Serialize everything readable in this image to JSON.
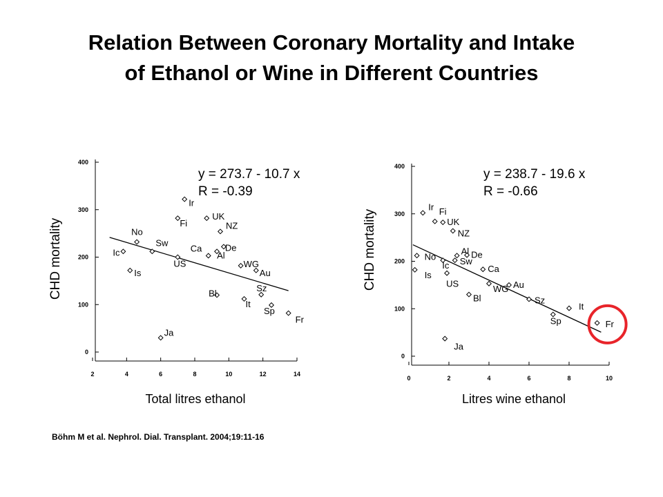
{
  "slide": {
    "title_line1": "Relation Between Coronary Mortality and Intake",
    "title_line2": "of Ethanol or Wine in Different Countries",
    "citation": "Böhm M et al. Nephrol. Dial. Transplant. 2004;19:11-16"
  },
  "chart_data": [
    {
      "type": "scatter",
      "title": "",
      "xlabel": "Total litres ethanol",
      "ylabel": "CHD mortality",
      "xlim": [
        2,
        14
      ],
      "ylim": [
        0,
        400
      ],
      "xticks": [
        "2",
        "4",
        "6",
        "8",
        "10",
        "12",
        "14"
      ],
      "yticks": [
        "0",
        "100",
        "200",
        "300",
        "400"
      ],
      "equation": "y = 273.7 - 10.7 x",
      "r_label": "R = -0.39",
      "regression": {
        "intercept": 273.7,
        "slope": -10.7,
        "x_range": [
          3,
          13.5
        ]
      },
      "points": [
        {
          "label": "Ir",
          "x": 7.4,
          "y": 322
        },
        {
          "label": "Fi",
          "x": 7.0,
          "y": 282
        },
        {
          "label": "UK",
          "x": 8.7,
          "y": 282
        },
        {
          "label": "NZ",
          "x": 9.5,
          "y": 254
        },
        {
          "label": "No",
          "x": 4.6,
          "y": 232
        },
        {
          "label": "De",
          "x": 9.7,
          "y": 222
        },
        {
          "label": "Sw",
          "x": 5.5,
          "y": 212
        },
        {
          "label": "Ic",
          "x": 3.8,
          "y": 212
        },
        {
          "label": "Ca",
          "x": 8.8,
          "y": 203
        },
        {
          "label": "Al",
          "x": 9.3,
          "y": 212
        },
        {
          "label": "US",
          "x": 7.0,
          "y": 200
        },
        {
          "label": "WG",
          "x": 10.7,
          "y": 182
        },
        {
          "label": "Au",
          "x": 11.6,
          "y": 172
        },
        {
          "label": "Is",
          "x": 4.2,
          "y": 172
        },
        {
          "label": "Bl",
          "x": 9.3,
          "y": 120
        },
        {
          "label": "Sz",
          "x": 11.9,
          "y": 121
        },
        {
          "label": "It",
          "x": 10.9,
          "y": 112
        },
        {
          "label": "Sp",
          "x": 12.5,
          "y": 99
        },
        {
          "label": "Fr",
          "x": 13.5,
          "y": 82
        },
        {
          "label": "Ja",
          "x": 6.0,
          "y": 30
        }
      ]
    },
    {
      "type": "scatter",
      "title": "",
      "xlabel": "Litres wine ethanol",
      "ylabel": "CHD mortality",
      "xlim": [
        0,
        10
      ],
      "ylim": [
        0,
        400
      ],
      "xticks": [
        "0",
        "2",
        "4",
        "6",
        "8",
        "10"
      ],
      "yticks": [
        "0",
        "100",
        "200",
        "300",
        "400"
      ],
      "equation": "y = 238.7 - 19.6 x",
      "r_label": "R = -0.66",
      "regression": {
        "intercept": 238.7,
        "slope": -19.6,
        "x_range": [
          0.2,
          9.6
        ]
      },
      "highlight": "Fr",
      "highlight_color": "#e8242a",
      "points": [
        {
          "label": "Ir",
          "x": 0.7,
          "y": 302
        },
        {
          "label": "Fi",
          "x": 1.3,
          "y": 284
        },
        {
          "label": "UK",
          "x": 1.7,
          "y": 282
        },
        {
          "label": "NZ",
          "x": 2.2,
          "y": 264
        },
        {
          "label": "No",
          "x": 0.4,
          "y": 212
        },
        {
          "label": "Ic",
          "x": 1.7,
          "y": 202
        },
        {
          "label": "Al",
          "x": 2.4,
          "y": 212
        },
        {
          "label": "De",
          "x": 2.9,
          "y": 213
        },
        {
          "label": "Sw",
          "x": 2.3,
          "y": 202
        },
        {
          "label": "Is",
          "x": 0.3,
          "y": 182
        },
        {
          "label": "Ca",
          "x": 3.7,
          "y": 183
        },
        {
          "label": "US",
          "x": 1.9,
          "y": 175
        },
        {
          "label": "Au",
          "x": 5.0,
          "y": 150
        },
        {
          "label": "WG",
          "x": 4.0,
          "y": 153
        },
        {
          "label": "Bl",
          "x": 3.0,
          "y": 130
        },
        {
          "label": "Sz",
          "x": 6.0,
          "y": 120
        },
        {
          "label": "It",
          "x": 8.0,
          "y": 101
        },
        {
          "label": "Sp",
          "x": 7.2,
          "y": 88
        },
        {
          "label": "Fr",
          "x": 9.4,
          "y": 70
        },
        {
          "label": "Ja",
          "x": 1.8,
          "y": 37
        }
      ]
    }
  ]
}
